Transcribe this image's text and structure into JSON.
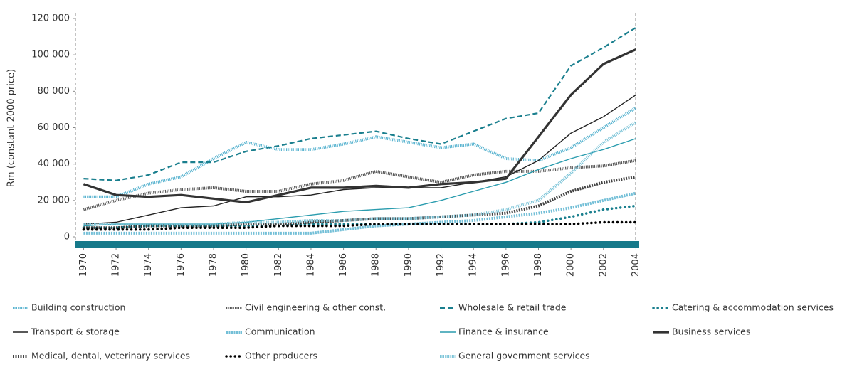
{
  "chart_data": {
    "type": "line",
    "y_label": "Rm (constant 2000 price)",
    "x": [
      1970,
      1972,
      1974,
      1976,
      1978,
      1980,
      1982,
      1984,
      1986,
      1988,
      1990,
      1992,
      1994,
      1996,
      1998,
      2000,
      2002,
      2004
    ],
    "xlim": [
      1969.5,
      2004.2
    ],
    "xticks": [
      1970,
      1972,
      1974,
      1976,
      1978,
      1980,
      1982,
      1984,
      1986,
      1988,
      1990,
      1992,
      1994,
      1996,
      1998,
      2000,
      2002,
      2004
    ],
    "ylim": [
      0,
      120000
    ],
    "yticks": [
      0,
      {
        "value": 20000,
        "label": "20 000"
      },
      {
        "value": 40000,
        "label": "40 000"
      },
      {
        "value": 60000,
        "label": "60 000"
      },
      {
        "value": 80000,
        "label": "80 000"
      },
      {
        "value": 100000,
        "label": "100 000"
      },
      {
        "value": 120000,
        "label": "120 000"
      }
    ],
    "grid": false,
    "series": [
      {
        "name": "Building construction",
        "color": "#5ab4d0",
        "style": "striped",
        "values": [
          22000,
          22000,
          29000,
          33000,
          43000,
          52000,
          48000,
          48000,
          51000,
          55000,
          52000,
          49000,
          51000,
          43000,
          42000,
          49000,
          60000,
          71000
        ]
      },
      {
        "name": "Civil engineering & other const.",
        "color": "#555555",
        "style": "striped",
        "values": [
          15000,
          20000,
          24000,
          26000,
          27000,
          25000,
          25000,
          29000,
          31000,
          36000,
          33000,
          30000,
          34000,
          36000,
          36000,
          38000,
          39000,
          42000
        ]
      },
      {
        "name": "Wholesale & retail trade",
        "color": "#1a7f8e",
        "style": "dashed",
        "values": [
          32000,
          31000,
          34000,
          41000,
          41000,
          47000,
          50000,
          54000,
          56000,
          58000,
          54000,
          51000,
          58000,
          65000,
          68000,
          94000,
          104000,
          115000
        ]
      },
      {
        "name": "Catering & accommodation services",
        "color": "#1a7f8e",
        "style": "dotted",
        "values": [
          5000,
          5000,
          6000,
          6000,
          6000,
          6000,
          6000,
          7000,
          7000,
          7000,
          7000,
          7000,
          7000,
          7000,
          8000,
          11000,
          15000,
          17000
        ]
      },
      {
        "name": "Transport & storage",
        "color": "#222222",
        "style": "solid",
        "values": [
          7000,
          8000,
          12000,
          16000,
          17000,
          22000,
          22000,
          23000,
          26000,
          27000,
          27000,
          27000,
          30000,
          33000,
          42000,
          57000,
          66000,
          78000
        ]
      },
      {
        "name": "Communication",
        "color": "#5ab4d0",
        "style": "diamond",
        "values": [
          2000,
          2000,
          2000,
          2000,
          2000,
          2000,
          2000,
          2000,
          4000,
          6000,
          7000,
          8000,
          9000,
          11000,
          13000,
          16000,
          20000,
          24000
        ]
      },
      {
        "name": "Finance & insurance",
        "color": "#2a9cae",
        "style": "solid",
        "values": [
          6000,
          7000,
          7000,
          7000,
          7000,
          8000,
          10000,
          12000,
          14000,
          15000,
          16000,
          20000,
          25000,
          30000,
          37000,
          43000,
          48000,
          54000
        ]
      },
      {
        "name": "Business services",
        "color": "#333333",
        "style": "thick",
        "values": [
          29000,
          23000,
          22000,
          23000,
          21000,
          19000,
          23000,
          27000,
          27000,
          28000,
          27000,
          29000,
          30000,
          32000,
          55000,
          78000,
          95000,
          103000
        ]
      },
      {
        "name": "Medical, dental, veterinary services",
        "color": "#222222",
        "style": "diamond",
        "values": [
          5000,
          5000,
          6000,
          6000,
          6000,
          7000,
          7000,
          8000,
          9000,
          10000,
          10000,
          11000,
          12000,
          13000,
          17000,
          25000,
          30000,
          33000
        ]
      },
      {
        "name": "Other producers",
        "color": "#000000",
        "style": "dotted",
        "values": [
          4000,
          4000,
          4000,
          5000,
          5000,
          5000,
          6000,
          6000,
          6000,
          7000,
          7000,
          7000,
          7000,
          7000,
          7000,
          7000,
          8000,
          8000
        ]
      },
      {
        "name": "General government services",
        "color": "#7cc4d8",
        "style": "striped",
        "values": [
          7000,
          7000,
          7000,
          7000,
          7000,
          8000,
          8000,
          9000,
          9000,
          10000,
          10000,
          11000,
          12000,
          15000,
          20000,
          35000,
          52000,
          63000
        ]
      }
    ]
  }
}
